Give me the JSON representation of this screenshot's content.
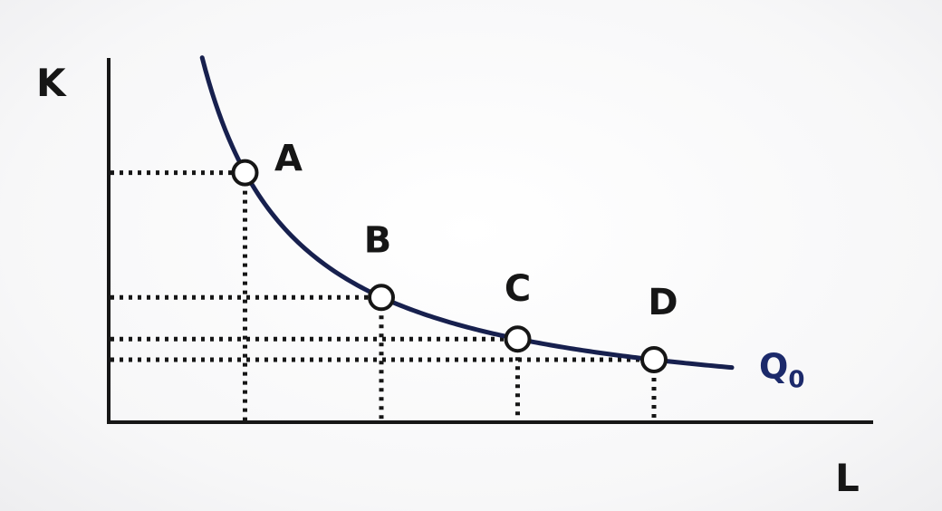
{
  "chart_data": {
    "type": "line",
    "title": "",
    "xlabel": "L",
    "ylabel": "K",
    "grid": false,
    "xlim": [
      0,
      10
    ],
    "ylim": [
      0,
      10
    ],
    "series": [
      {
        "name": "Q0",
        "label_main": "Q",
        "label_sub": "0",
        "curve": "isoquant",
        "k_const": 14.2,
        "x_range": [
          1.2,
          8.0
        ]
      }
    ],
    "points": [
      {
        "label": "A",
        "x": 1.75,
        "y": 8.1
      },
      {
        "label": "B",
        "x": 3.5,
        "y": 4.05
      },
      {
        "label": "C",
        "x": 5.25,
        "y": 2.7
      },
      {
        "label": "D",
        "x": 7.0,
        "y": 2.03
      }
    ],
    "colors": {
      "curve": "#17204e",
      "axis": "#161616",
      "guides": "#161616",
      "curve_label": "#1c2a6b",
      "point_fill": "#ffffff"
    }
  }
}
